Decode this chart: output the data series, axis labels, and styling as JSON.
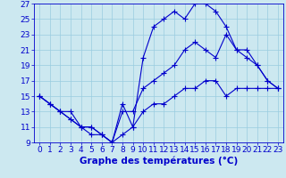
{
  "xlabel": "Graphe des températures (°C)",
  "x": [
    0,
    1,
    2,
    3,
    4,
    5,
    6,
    7,
    8,
    9,
    10,
    11,
    12,
    13,
    14,
    15,
    16,
    17,
    18,
    19,
    20,
    21,
    22,
    23
  ],
  "line1": [
    15,
    14,
    13,
    12,
    11,
    10,
    10,
    9,
    14,
    11,
    20,
    24,
    25,
    26,
    25,
    27,
    27,
    26,
    24,
    21,
    21,
    19,
    17,
    16
  ],
  "line2": [
    15,
    14,
    13,
    13,
    11,
    11,
    10,
    9,
    13,
    13,
    16,
    17,
    18,
    19,
    21,
    22,
    21,
    20,
    23,
    21,
    20,
    19,
    17,
    16
  ],
  "line3": [
    15,
    14,
    13,
    12,
    11,
    11,
    10,
    9,
    10,
    11,
    13,
    14,
    14,
    15,
    16,
    16,
    17,
    17,
    15,
    16,
    16,
    16,
    16,
    16
  ],
  "line_color": "#0000cc",
  "bg_color": "#cce8f0",
  "grid_color": "#99cce0",
  "ylim": [
    9,
    27
  ],
  "yticks": [
    9,
    11,
    13,
    15,
    17,
    19,
    21,
    23,
    25,
    27
  ],
  "xticks": [
    0,
    1,
    2,
    3,
    4,
    5,
    6,
    7,
    8,
    9,
    10,
    11,
    12,
    13,
    14,
    15,
    16,
    17,
    18,
    19,
    20,
    21,
    22,
    23
  ],
  "marker": "+",
  "markersize": 4,
  "linewidth": 0.8,
  "fontsize": 6.5,
  "xlabel_fontsize": 7.5
}
